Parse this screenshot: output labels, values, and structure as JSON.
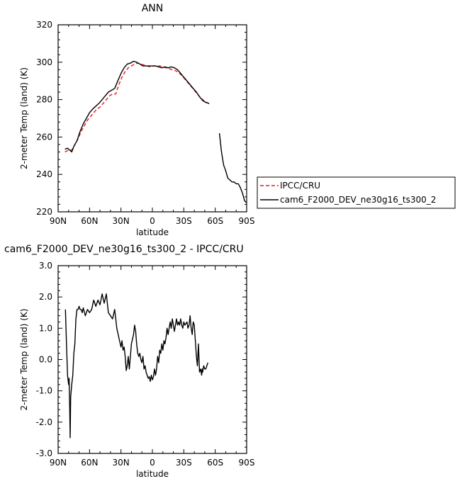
{
  "chart_data": [
    {
      "type": "line",
      "title": "ANN",
      "xlabel": "latitude",
      "ylabel": "2-meter Temp (land) (K)",
      "xlim": [
        90,
        -90
      ],
      "ylim": [
        220,
        320
      ],
      "xticks": [
        {
          "value": 90,
          "label": "90N"
        },
        {
          "value": 60,
          "label": "60N"
        },
        {
          "value": 30,
          "label": "30N"
        },
        {
          "value": 0,
          "label": "0"
        },
        {
          "value": -30,
          "label": "30S"
        },
        {
          "value": -60,
          "label": "60S"
        },
        {
          "value": -90,
          "label": "90S"
        }
      ],
      "yticks": [
        {
          "value": 220,
          "label": "220"
        },
        {
          "value": 240,
          "label": "240"
        },
        {
          "value": 260,
          "label": "260"
        },
        {
          "value": 280,
          "label": "280"
        },
        {
          "value": 300,
          "label": "300"
        },
        {
          "value": 320,
          "label": "320"
        }
      ],
      "legend_position": "right-bottom (outside plot)",
      "series": [
        {
          "name": "IPCC/CRU",
          "color": "#e41a1c",
          "dash": "dashed",
          "x": [
            83.5,
            80,
            77,
            74,
            71,
            68,
            65,
            62,
            59,
            56,
            53,
            50,
            47,
            44,
            41,
            38,
            35,
            32,
            29,
            26,
            23,
            20,
            17,
            14,
            11,
            8,
            5,
            2,
            -1,
            -4,
            -7,
            -10,
            -13,
            -16,
            -19,
            -22,
            -25,
            -28,
            -31,
            -34,
            -37,
            -40,
            -43,
            -46,
            -49,
            -52,
            -55
          ],
          "y": [
            252,
            253,
            253,
            256,
            259,
            263,
            266,
            269,
            271,
            273,
            275,
            276,
            278,
            280,
            282,
            283,
            283,
            288,
            292,
            295,
            297,
            298,
            299,
            299.5,
            299,
            298.5,
            298,
            297.5,
            298,
            298,
            298,
            297.5,
            297,
            296.5,
            296,
            295.5,
            294.5,
            293,
            291,
            289,
            287,
            285,
            283,
            281,
            279.5,
            278.5,
            277.5
          ]
        },
        {
          "name": "cam6_F2000_DEV_ne30g16_ts300_2",
          "color": "#000000",
          "dash": "solid",
          "segments": [
            {
              "x": [
                83.5,
                81,
                79,
                77,
                75,
                72,
                69,
                66,
                63,
                60,
                57,
                54,
                51,
                48,
                45,
                42,
                39,
                36,
                33,
                30,
                27,
                24,
                21,
                18,
                15,
                12,
                9,
                6,
                3,
                0,
                -3,
                -6,
                -9,
                -12,
                -15,
                -18,
                -21,
                -24,
                -27,
                -30,
                -33,
                -36,
                -39,
                -42,
                -45,
                -48,
                -51,
                -54
              ],
              "y": [
                253.5,
                254,
                253,
                252,
                255,
                258,
                263,
                267,
                270,
                273,
                275,
                276.5,
                278,
                280,
                282,
                284,
                285,
                286,
                290,
                294,
                297,
                299,
                299.5,
                300.5,
                300,
                299,
                298,
                298,
                298,
                298,
                298,
                297.5,
                297,
                297.5,
                297,
                297.5,
                297,
                296,
                294,
                292,
                290,
                288,
                286,
                284,
                281.5,
                279.5,
                278.5,
                278
              ]
            },
            {
              "x": [
                -64,
                -66,
                -68,
                -70,
                -72,
                -74,
                -76,
                -78,
                -80,
                -82,
                -84,
                -86,
                -88,
                -89.5
              ],
              "y": [
                262,
                252,
                245,
                242,
                238,
                237,
                236,
                236,
                235,
                235,
                233,
                230,
                226,
                225
              ]
            }
          ]
        }
      ]
    },
    {
      "type": "line",
      "title": "cam6_F2000_DEV_ne30g16_ts300_2 - IPCC/CRU",
      "xlabel": "latitude",
      "ylabel": "2-meter Temp (land) (K)",
      "xlim": [
        90,
        -90
      ],
      "ylim": [
        -3.0,
        3.0
      ],
      "xticks": [
        {
          "value": 90,
          "label": "90N"
        },
        {
          "value": 60,
          "label": "60N"
        },
        {
          "value": 30,
          "label": "30N"
        },
        {
          "value": 0,
          "label": "0"
        },
        {
          "value": -30,
          "label": "30S"
        },
        {
          "value": -60,
          "label": "60S"
        },
        {
          "value": -90,
          "label": "90S"
        }
      ],
      "yticks": [
        {
          "value": -3.0,
          "label": "-3.0"
        },
        {
          "value": -2.0,
          "label": "-2.0"
        },
        {
          "value": -1.0,
          "label": "-1.0"
        },
        {
          "value": 0.0,
          "label": "0.0"
        },
        {
          "value": 1.0,
          "label": "1.0"
        },
        {
          "value": 2.0,
          "label": "2.0"
        },
        {
          "value": 3.0,
          "label": "3.0"
        }
      ],
      "series": [
        {
          "name": "",
          "color": "#000000",
          "dash": "solid",
          "x": [
            83,
            82,
            81,
            80,
            79.5,
            79,
            78.5,
            78,
            77,
            76,
            75,
            74,
            73,
            72,
            71,
            70,
            69,
            68,
            67,
            66,
            64,
            62,
            60,
            58,
            56,
            54,
            52,
            50,
            48,
            46,
            44,
            42,
            40,
            38,
            36,
            34,
            32,
            30,
            29,
            28,
            27,
            26,
            25,
            24,
            23,
            22,
            20,
            18,
            17,
            16,
            15,
            14,
            13,
            12,
            11,
            10,
            9,
            8,
            7,
            6,
            5,
            4,
            3,
            2,
            1,
            0,
            -1,
            -2,
            -3,
            -4,
            -5,
            -6,
            -7,
            -8,
            -9,
            -10,
            -11,
            -12,
            -13,
            -14,
            -15,
            -16,
            -17,
            -18,
            -19,
            -20,
            -21,
            -22,
            -23,
            -24,
            -25,
            -26,
            -27,
            -28,
            -29,
            -30,
            -31,
            -32,
            -33,
            -34,
            -35,
            -36,
            -37,
            -38,
            -39,
            -40,
            -41,
            -42,
            -43,
            -44,
            -45,
            -46,
            -47,
            -47.5,
            -48,
            -49,
            -50,
            -51,
            -52,
            -53
          ],
          "y": [
            1.6,
            0.5,
            -0.5,
            -0.8,
            -0.6,
            -1.5,
            -2.5,
            -1.2,
            -0.8,
            -0.5,
            0.2,
            0.5,
            1.3,
            1.6,
            1.6,
            1.7,
            1.6,
            1.6,
            1.5,
            1.65,
            1.4,
            1.6,
            1.5,
            1.6,
            1.9,
            1.7,
            1.9,
            1.75,
            2.1,
            1.8,
            2.1,
            1.5,
            1.4,
            1.3,
            1.6,
            1.0,
            0.7,
            0.4,
            0.6,
            0.3,
            0.4,
            0.1,
            -0.35,
            -0.2,
            0.1,
            -0.3,
            0.5,
            0.8,
            1.1,
            0.9,
            0.5,
            0.2,
            0.1,
            0.2,
            0.0,
            -0.1,
            0.1,
            -0.3,
            -0.2,
            -0.4,
            -0.5,
            -0.6,
            -0.55,
            -0.7,
            -0.5,
            -0.65,
            -0.55,
            -0.3,
            -0.5,
            -0.3,
            0.1,
            -0.1,
            0.3,
            0.2,
            0.5,
            0.3,
            0.6,
            0.5,
            0.7,
            1.0,
            0.8,
            1.0,
            1.2,
            1.0,
            1.3,
            1.1,
            0.9,
            1.1,
            1.3,
            1.1,
            1.2,
            1.1,
            1.3,
            1.1,
            1.0,
            1.2,
            1.1,
            1.15,
            1.2,
            1.0,
            1.1,
            1.4,
            1.0,
            0.8,
            1.2,
            1.1,
            0.6,
            0.1,
            -0.2,
            0.5,
            -0.4,
            -0.3,
            -0.5,
            -0.3,
            -0.4,
            -0.2,
            -0.3,
            -0.3,
            -0.2,
            -0.1
          ]
        }
      ]
    }
  ]
}
